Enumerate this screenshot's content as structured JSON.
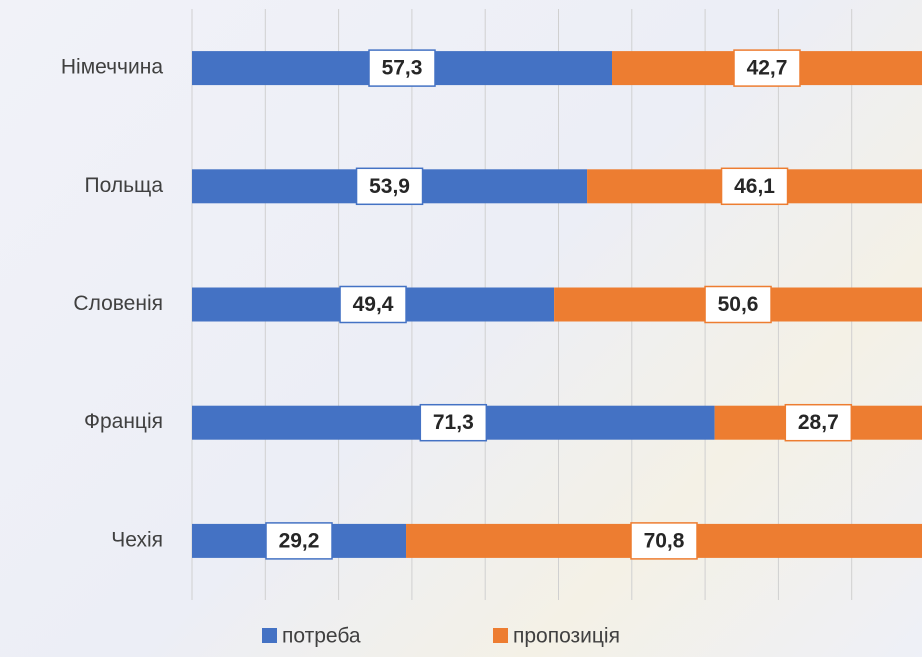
{
  "chart_data": {
    "type": "stacked-barh",
    "categories": [
      "Німеччина",
      "Польща",
      "Словенія",
      "Франція",
      "Чехія"
    ],
    "series": [
      {
        "name": "потреба",
        "color": "#4472c4",
        "values": [
          57.3,
          53.9,
          49.4,
          71.3,
          29.2
        ],
        "value_labels": [
          "57,3",
          "53,9",
          "49,4",
          "71,3",
          "29,2"
        ]
      },
      {
        "name": "пропозиція",
        "color": "#ed7d31",
        "values": [
          42.7,
          46.1,
          50.6,
          28.7,
          70.8
        ],
        "value_labels": [
          "42,7",
          "46,1",
          "50,6",
          "28,7",
          "70,8"
        ]
      }
    ],
    "xlim": [
      0,
      100
    ],
    "xticks": [
      0,
      10,
      20,
      30,
      40,
      50,
      60,
      70,
      80,
      90,
      100
    ],
    "grid": true,
    "legend": "bottom"
  }
}
